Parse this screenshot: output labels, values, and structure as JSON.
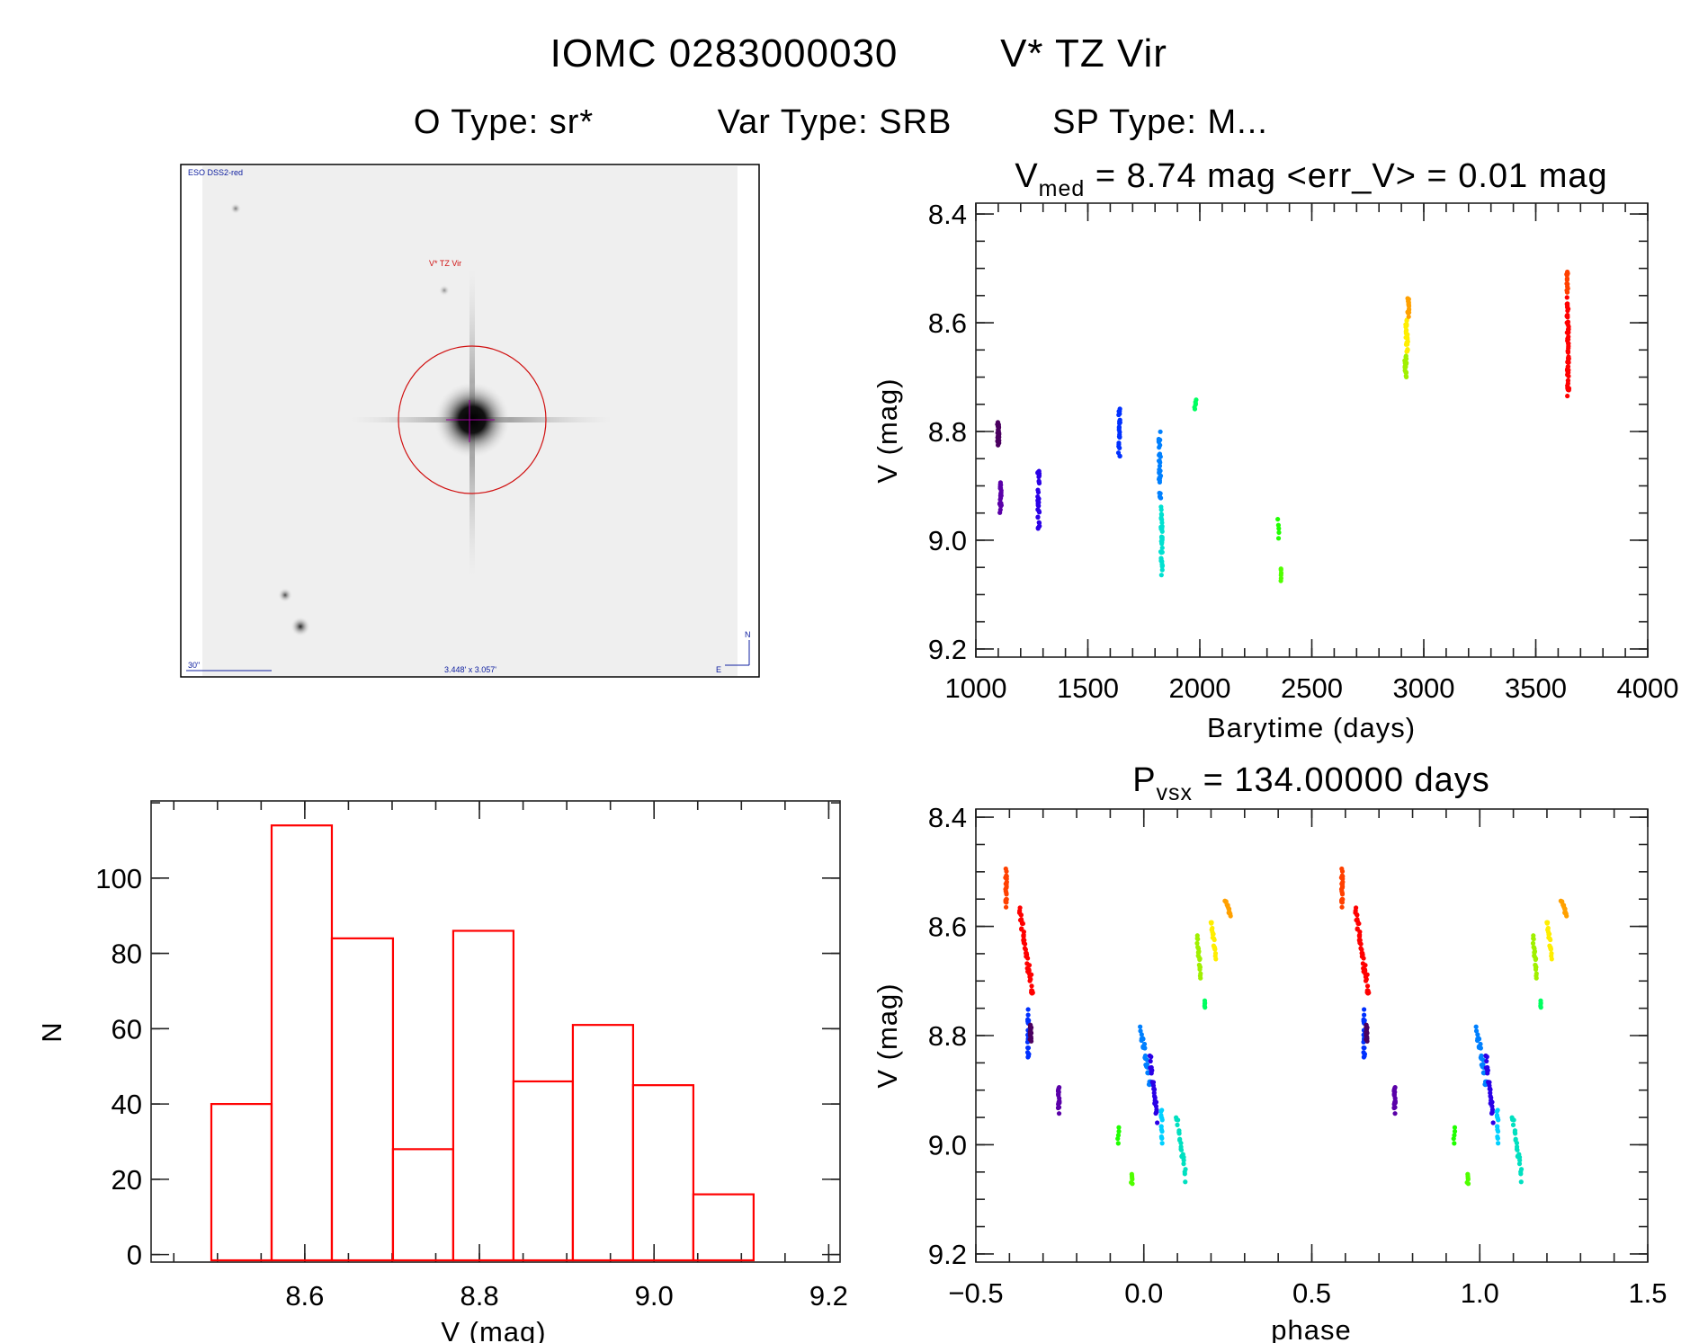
{
  "header": {
    "title_id": "IOMC 0283000030",
    "title_name": "V* TZ Vir",
    "otype": "O Type: sr*",
    "vartype": "Var Type: SRB",
    "sptype": "SP Type: M..."
  },
  "image_panel": {
    "survey": "ESO DSS2-red",
    "target_label": "V* TZ Vir",
    "scale_bar": "30\"",
    "fov": "3.448' x 3.057'",
    "north": "N",
    "east": "E",
    "circle_color": "#d01010",
    "label_color": "#1020a0"
  },
  "chart_data": [
    {
      "type": "scatter",
      "id": "lightcurve",
      "title_main": "V",
      "title_sub": "med",
      "title_rest": " = 8.74 mag <err_V> = 0.01 mag",
      "xlabel": "Barytime (days)",
      "ylabel": "V (mag)",
      "xlim": [
        1000,
        4000
      ],
      "ylim": [
        8.38,
        9.215
      ],
      "y_inverted": true,
      "xticks": [
        1000,
        1500,
        2000,
        2500,
        3000,
        3500,
        4000
      ],
      "yticks": [
        8.4,
        8.6,
        8.8,
        9.0,
        9.2
      ],
      "clusters": [
        {
          "x": [
            1100,
            1100
          ],
          "v": [
            8.78,
            8.83
          ],
          "n": 26,
          "color": "#4b0060"
        },
        {
          "x": [
            1110,
            1110
          ],
          "v": [
            8.89,
            8.95
          ],
          "n": 22,
          "color": "#5a00a8"
        },
        {
          "x": [
            1280,
            1280
          ],
          "v": [
            8.86,
            8.99
          ],
          "n": 30,
          "color": "#2a00e6"
        },
        {
          "x": [
            1640,
            1640
          ],
          "v": [
            8.75,
            8.85
          ],
          "n": 24,
          "color": "#0030ff"
        },
        {
          "x": [
            1820,
            1822
          ],
          "v": [
            8.8,
            8.93
          ],
          "n": 30,
          "color": "#0080ff"
        },
        {
          "x": [
            1828,
            1830
          ],
          "v": [
            8.93,
            9.07
          ],
          "n": 36,
          "color": "#00e0d0"
        },
        {
          "x": [
            1980,
            1980
          ],
          "v": [
            8.74,
            8.76
          ],
          "n": 6,
          "color": "#00ff60"
        },
        {
          "x": [
            2350,
            2350
          ],
          "v": [
            8.96,
            9.0
          ],
          "n": 5,
          "color": "#20ff00"
        },
        {
          "x": [
            2360,
            2360
          ],
          "v": [
            9.05,
            9.075
          ],
          "n": 6,
          "color": "#50ff00"
        },
        {
          "x": [
            2918,
            2920
          ],
          "v": [
            8.66,
            8.7
          ],
          "n": 18,
          "color": "#a0f000"
        },
        {
          "x": [
            2922,
            2926
          ],
          "v": [
            8.59,
            8.66
          ],
          "n": 22,
          "color": "#ffee00"
        },
        {
          "x": [
            2930,
            2932
          ],
          "v": [
            8.55,
            8.59
          ],
          "n": 14,
          "color": "#ffa000"
        },
        {
          "x": [
            3640,
            3640
          ],
          "v": [
            8.5,
            8.55
          ],
          "n": 14,
          "color": "#ff4000"
        },
        {
          "x": [
            3642,
            3645
          ],
          "v": [
            8.55,
            8.745
          ],
          "n": 60,
          "color": "#ff0000"
        }
      ]
    },
    {
      "type": "scatter",
      "id": "phased",
      "title_main": "P",
      "title_sub": "vsx",
      "title_rest": " = 134.00000 days",
      "xlabel": "phase",
      "ylabel": "V (mag)",
      "xlim": [
        -0.5,
        1.5
      ],
      "ylim": [
        8.385,
        9.215
      ],
      "y_inverted": true,
      "xticks": [
        -0.5,
        0.0,
        0.5,
        1.0,
        1.5
      ],
      "yticks": [
        8.4,
        8.6,
        8.8,
        9.0,
        9.2
      ],
      "period_days": 134.0,
      "repeat_offset": 1.0,
      "clusters": [
        {
          "x": [
            -0.41,
            -0.41
          ],
          "v": [
            8.493,
            8.565
          ],
          "n": 22,
          "color": "#ff4000"
        },
        {
          "x": [
            -0.37,
            -0.33
          ],
          "v": [
            8.56,
            8.74
          ],
          "n": 50,
          "color": "#ff0000"
        },
        {
          "x": [
            -0.344,
            -0.344
          ],
          "v": [
            8.752,
            8.852
          ],
          "n": 22,
          "color": "#0030ff"
        },
        {
          "x": [
            -0.337,
            -0.337
          ],
          "v": [
            8.779,
            8.812
          ],
          "n": 16,
          "color": "#4b0060"
        },
        {
          "x": [
            -0.253,
            -0.253
          ],
          "v": [
            8.888,
            8.943
          ],
          "n": 20,
          "color": "#5a00a8"
        },
        {
          "x": [
            -0.076,
            -0.076
          ],
          "v": [
            8.964,
            9.0
          ],
          "n": 5,
          "color": "#20ff00"
        },
        {
          "x": [
            -0.036,
            -0.036
          ],
          "v": [
            9.052,
            9.074
          ],
          "n": 6,
          "color": "#50ff00"
        },
        {
          "x": [
            -0.009,
            0.018
          ],
          "v": [
            8.78,
            8.9
          ],
          "n": 30,
          "color": "#0080ff"
        },
        {
          "x": [
            0.018,
            0.04
          ],
          "v": [
            8.83,
            8.96
          ],
          "n": 28,
          "color": "#2a00e6"
        },
        {
          "x": [
            0.053,
            0.053
          ],
          "v": [
            8.93,
            9.0
          ],
          "n": 14,
          "color": "#00d0ff"
        },
        {
          "x": [
            0.098,
            0.125
          ],
          "v": [
            8.94,
            9.07
          ],
          "n": 24,
          "color": "#00e0c0"
        },
        {
          "x": [
            0.18,
            0.18
          ],
          "v": [
            8.735,
            8.75
          ],
          "n": 5,
          "color": "#00ff60"
        },
        {
          "x": [
            0.158,
            0.17
          ],
          "v": [
            8.615,
            8.696
          ],
          "n": 22,
          "color": "#a0f000"
        },
        {
          "x": [
            0.2,
            0.214
          ],
          "v": [
            8.586,
            8.66
          ],
          "n": 20,
          "color": "#ffee00"
        },
        {
          "x": [
            0.243,
            0.258
          ],
          "v": [
            8.549,
            8.583
          ],
          "n": 14,
          "color": "#ffa000"
        }
      ]
    },
    {
      "type": "bar",
      "id": "histogram",
      "xlabel": "V (mag)",
      "ylabel": "N",
      "xlim": [
        8.424,
        9.213
      ],
      "ylim": [
        -2,
        120.5
      ],
      "xticks": [
        8.6,
        8.8,
        9.0,
        9.2
      ],
      "yticks": [
        0,
        20,
        40,
        60,
        80,
        100
      ],
      "bin_edges": [
        8.493,
        8.562,
        8.631,
        8.701,
        8.77,
        8.839,
        8.907,
        8.976,
        9.045,
        9.114
      ],
      "values": [
        40,
        114,
        84,
        28,
        86,
        46,
        61,
        45,
        16
      ],
      "color": "#ff0000"
    }
  ]
}
